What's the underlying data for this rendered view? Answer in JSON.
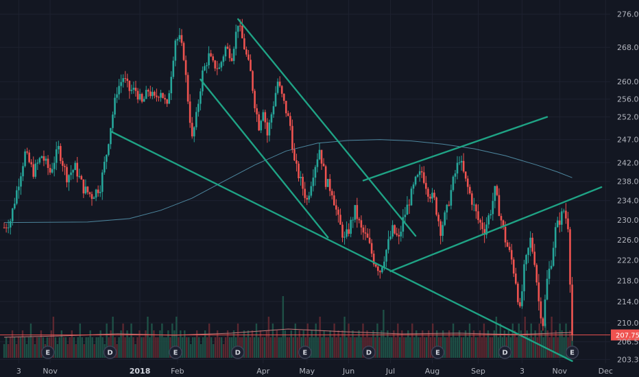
{
  "chart_data": {
    "type": "candlestick",
    "y_axis": {
      "ticks": [
        276.0,
        268.0,
        260.0,
        256.0,
        252.0,
        247.0,
        242.0,
        238.0,
        234.0,
        230.0,
        226.0,
        222.0,
        218.0,
        214.0,
        210.0,
        206.5,
        203.3
      ],
      "range": [
        202.6,
        277.8
      ],
      "scale": "log"
    },
    "x_axis": {
      "labels": [
        {
          "text": "3",
          "bar": 7
        },
        {
          "text": "Nov",
          "bar": 22
        },
        {
          "text": "2018",
          "bar": 65,
          "bold": true
        },
        {
          "text": "Feb",
          "bar": 83
        },
        {
          "text": "Apr",
          "bar": 124
        },
        {
          "text": "May",
          "bar": 145
        },
        {
          "text": "Jun",
          "bar": 165
        },
        {
          "text": "Jul",
          "bar": 185
        },
        {
          "text": "Aug",
          "bar": 205
        },
        {
          "text": "Sep",
          "bar": 227
        },
        {
          "text": "3",
          "bar": 248
        },
        {
          "text": "Nov",
          "bar": 266
        },
        {
          "text": "Dec",
          "bar": 288
        }
      ],
      "bar_range": [
        -2,
        304
      ]
    },
    "price_series": [
      {
        "bar": 0,
        "close": 228.5
      },
      {
        "bar": 3,
        "close": 230.0
      },
      {
        "bar": 6,
        "close": 236.0
      },
      {
        "bar": 10,
        "close": 244.0
      },
      {
        "bar": 14,
        "close": 240.0
      },
      {
        "bar": 18,
        "close": 243.5
      },
      {
        "bar": 22,
        "close": 240.0
      },
      {
        "bar": 26,
        "close": 245.0
      },
      {
        "bar": 30,
        "close": 239.0
      },
      {
        "bar": 34,
        "close": 241.0
      },
      {
        "bar": 38,
        "close": 236.5
      },
      {
        "bar": 42,
        "close": 235.0
      },
      {
        "bar": 46,
        "close": 237.0
      },
      {
        "bar": 49,
        "close": 244.0
      },
      {
        "bar": 51,
        "close": 250.0
      },
      {
        "bar": 54,
        "close": 258.0
      },
      {
        "bar": 57,
        "close": 261.0
      },
      {
        "bar": 60,
        "close": 258.0
      },
      {
        "bar": 63,
        "close": 258.0
      },
      {
        "bar": 66,
        "close": 255.0
      },
      {
        "bar": 69,
        "close": 258.0
      },
      {
        "bar": 72,
        "close": 256.0
      },
      {
        "bar": 75,
        "close": 258.0
      },
      {
        "bar": 78,
        "close": 254.0
      },
      {
        "bar": 80,
        "close": 262.0
      },
      {
        "bar": 82,
        "close": 270.0
      },
      {
        "bar": 84,
        "close": 270.0
      },
      {
        "bar": 86,
        "close": 266.0
      },
      {
        "bar": 88,
        "close": 256.0
      },
      {
        "bar": 90,
        "close": 247.0
      },
      {
        "bar": 92,
        "close": 252.0
      },
      {
        "bar": 95,
        "close": 262.0
      },
      {
        "bar": 98,
        "close": 266.0
      },
      {
        "bar": 100,
        "close": 264.0
      },
      {
        "bar": 103,
        "close": 263.0
      },
      {
        "bar": 106,
        "close": 268.0
      },
      {
        "bar": 109,
        "close": 266.0
      },
      {
        "bar": 112,
        "close": 274.0
      },
      {
        "bar": 115,
        "close": 268.0
      },
      {
        "bar": 118,
        "close": 262.0
      },
      {
        "bar": 120,
        "close": 255.0
      },
      {
        "bar": 122,
        "close": 250.0
      },
      {
        "bar": 124,
        "close": 254.0
      },
      {
        "bar": 126,
        "close": 248.0
      },
      {
        "bar": 129,
        "close": 255.0
      },
      {
        "bar": 131,
        "close": 260.0
      },
      {
        "bar": 134,
        "close": 255.0
      },
      {
        "bar": 137,
        "close": 250.0
      },
      {
        "bar": 139,
        "close": 242.0
      },
      {
        "bar": 142,
        "close": 238.0
      },
      {
        "bar": 145,
        "close": 234.0
      },
      {
        "bar": 148,
        "close": 240.0
      },
      {
        "bar": 151,
        "close": 245.0
      },
      {
        "bar": 154,
        "close": 238.0
      },
      {
        "bar": 157,
        "close": 236.0
      },
      {
        "bar": 160,
        "close": 230.0
      },
      {
        "bar": 163,
        "close": 226.0
      },
      {
        "bar": 165,
        "close": 228.0
      },
      {
        "bar": 168,
        "close": 232.0
      },
      {
        "bar": 171,
        "close": 228.0
      },
      {
        "bar": 174,
        "close": 226.0
      },
      {
        "bar": 177,
        "close": 222.0
      },
      {
        "bar": 180,
        "close": 220.0
      },
      {
        "bar": 183,
        "close": 224.0
      },
      {
        "bar": 186,
        "close": 228.0
      },
      {
        "bar": 189,
        "close": 226.0
      },
      {
        "bar": 191,
        "close": 230.0
      },
      {
        "bar": 194,
        "close": 234.0
      },
      {
        "bar": 197,
        "close": 238.0
      },
      {
        "bar": 200,
        "close": 240.0
      },
      {
        "bar": 203,
        "close": 236.0
      },
      {
        "bar": 206,
        "close": 234.0
      },
      {
        "bar": 209,
        "close": 228.0
      },
      {
        "bar": 212,
        "close": 232.0
      },
      {
        "bar": 215,
        "close": 238.0
      },
      {
        "bar": 218,
        "close": 243.0
      },
      {
        "bar": 221,
        "close": 238.0
      },
      {
        "bar": 224,
        "close": 234.0
      },
      {
        "bar": 227,
        "close": 230.0
      },
      {
        "bar": 230,
        "close": 228.0
      },
      {
        "bar": 233,
        "close": 232.0
      },
      {
        "bar": 235,
        "close": 236.0
      },
      {
        "bar": 237,
        "close": 232.0
      },
      {
        "bar": 240,
        "close": 226.0
      },
      {
        "bar": 243,
        "close": 222.0
      },
      {
        "bar": 245,
        "close": 218.0
      },
      {
        "bar": 247,
        "close": 212.0
      },
      {
        "bar": 249,
        "close": 220.0
      },
      {
        "bar": 252,
        "close": 226.0
      },
      {
        "bar": 254,
        "close": 222.0
      },
      {
        "bar": 256,
        "close": 214.0
      },
      {
        "bar": 258,
        "close": 210.0
      },
      {
        "bar": 260,
        "close": 218.0
      },
      {
        "bar": 262,
        "close": 222.0
      },
      {
        "bar": 264,
        "close": 228.0
      },
      {
        "bar": 266,
        "close": 230.0
      },
      {
        "bar": 268,
        "close": 232.0
      },
      {
        "bar": 270,
        "close": 229.0
      },
      {
        "bar": 272,
        "close": 207.75
      }
    ],
    "moving_average_200": [
      {
        "bar": 0,
        "value": 229.5
      },
      {
        "bar": 40,
        "value": 229.6
      },
      {
        "bar": 60,
        "value": 230.3
      },
      {
        "bar": 75,
        "value": 232.0
      },
      {
        "bar": 90,
        "value": 234.5
      },
      {
        "bar": 105,
        "value": 238.0
      },
      {
        "bar": 120,
        "value": 241.5
      },
      {
        "bar": 135,
        "value": 244.5
      },
      {
        "bar": 150,
        "value": 246.2
      },
      {
        "bar": 165,
        "value": 246.8
      },
      {
        "bar": 180,
        "value": 247.0
      },
      {
        "bar": 195,
        "value": 246.7
      },
      {
        "bar": 210,
        "value": 246.0
      },
      {
        "bar": 225,
        "value": 245.0
      },
      {
        "bar": 240,
        "value": 243.5
      },
      {
        "bar": 255,
        "value": 241.5
      },
      {
        "bar": 265,
        "value": 240.0
      },
      {
        "bar": 272,
        "value": 238.8
      }
    ],
    "trendlines": [
      {
        "from": {
          "bar": 51,
          "price": 248.8
        },
        "to": {
          "bar": 272,
          "price": 203.0
        }
      },
      {
        "from": {
          "bar": 94,
          "price": 260.5
        },
        "to": {
          "bar": 155,
          "price": 226.5
        }
      },
      {
        "from": {
          "bar": 112,
          "price": 274.8
        },
        "to": {
          "bar": 197,
          "price": 226.8
        }
      },
      {
        "from": {
          "bar": 172,
          "price": 238.2
        },
        "to": {
          "bar": 260,
          "price": 252.0
        }
      },
      {
        "from": {
          "bar": 185,
          "price": 219.8
        },
        "to": {
          "bar": 286,
          "price": 236.8
        }
      }
    ],
    "volume": [
      2,
      3,
      2,
      3,
      4,
      3,
      2,
      3,
      3,
      4,
      3,
      2,
      3,
      5,
      3,
      2,
      3,
      3,
      4,
      3,
      2,
      3,
      3,
      4,
      6,
      3,
      2,
      3,
      4,
      3,
      3,
      2,
      3,
      4,
      3,
      2,
      3,
      5,
      3,
      2,
      3,
      3,
      4,
      3,
      2,
      3,
      3,
      4,
      3,
      2,
      5,
      3,
      4,
      6,
      3,
      2,
      3,
      4,
      5,
      3,
      4,
      3,
      5,
      3,
      2,
      3,
      4,
      3,
      3,
      4,
      6,
      3,
      5,
      4,
      3,
      3,
      4,
      5,
      3,
      3,
      4,
      3,
      5,
      4,
      6,
      3,
      4,
      3,
      4,
      3,
      3,
      2,
      3,
      3,
      4,
      3,
      2,
      3,
      4,
      3,
      5,
      3,
      2,
      3,
      4,
      3,
      3,
      2,
      3,
      4,
      3,
      3,
      4,
      3,
      5,
      3,
      3,
      4,
      3,
      4,
      3,
      4,
      3,
      5,
      3,
      4,
      3,
      3,
      4,
      6,
      3,
      5,
      3,
      4,
      3,
      3,
      9,
      4,
      3,
      3,
      4,
      3,
      5,
      3,
      4,
      3,
      4,
      3,
      5,
      3,
      4,
      3,
      5,
      3,
      6,
      3,
      4,
      3,
      3,
      4,
      3,
      5,
      3,
      4,
      3,
      4,
      6,
      3,
      5,
      3,
      4,
      3,
      3,
      4,
      3,
      5,
      3,
      4,
      3,
      3,
      4,
      3,
      5,
      3,
      4,
      7,
      3,
      4,
      3,
      3,
      4,
      3,
      5,
      3,
      4,
      3,
      3,
      4,
      3,
      5,
      3,
      4,
      3,
      3,
      4,
      3,
      3,
      4,
      3,
      5,
      3,
      4,
      3,
      3,
      4,
      3,
      3,
      4,
      3,
      5,
      3,
      3,
      4,
      3,
      3,
      4,
      3,
      5,
      3,
      4,
      3,
      3,
      4,
      3,
      5,
      3,
      4,
      3,
      3,
      4,
      6,
      3,
      5,
      3,
      4,
      3,
      4,
      3,
      5,
      4,
      3,
      5,
      4,
      3,
      6,
      4,
      3,
      5,
      3,
      4,
      3,
      5,
      4,
      3,
      5,
      4,
      3,
      6,
      3,
      4,
      3,
      5,
      4,
      3,
      5,
      3,
      4,
      7
    ],
    "volume_ma_levels": [
      3.0,
      3.2,
      3.5,
      3.3,
      3.6,
      4.2,
      3.8,
      3.5,
      3.6,
      3.4,
      3.7
    ],
    "events": [
      {
        "letter": "E",
        "bar": 26
      },
      {
        "letter": "D",
        "bar": 63
      },
      {
        "letter": "E",
        "bar": 102
      },
      {
        "letter": "D",
        "bar": 139
      },
      {
        "letter": "E",
        "bar": 179
      },
      {
        "letter": "D",
        "bar": 217
      },
      {
        "letter": "E",
        "bar": 258
      },
      {
        "letter": "D",
        "bar": 298
      },
      {
        "letter": "E",
        "bar": 338
      }
    ],
    "last_price": 207.75,
    "last_price_label": "207.75",
    "colors": {
      "background": "#131722",
      "up": "#26a69a",
      "down": "#ef5350",
      "trendline": "#1fa385",
      "ma_line": "#4e88a0",
      "volume_up": "#1e5046",
      "volume_down": "#5c2730",
      "volume_ma": "#c97a7a",
      "grid": "#1e2230",
      "last_price": "#ef5350",
      "event_ring": "#3d4256",
      "event_fill": "#1c2030"
    },
    "grid": true
  }
}
